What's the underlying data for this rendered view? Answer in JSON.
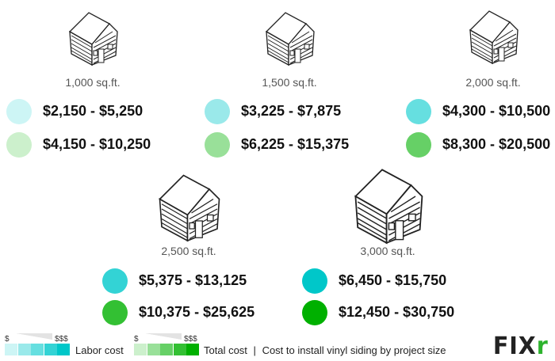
{
  "projects": [
    {
      "size": "1,000 sq.ft.",
      "labor": "$2,150 - $5,250",
      "total": "$4,150 - $10,250",
      "labor_color": "#cdf5f5",
      "total_color": "#ccf0cc"
    },
    {
      "size": "1,500 sq.ft.",
      "labor": "$3,225 - $7,875",
      "total": "$6,225 - $15,375",
      "labor_color": "#9ae9ea",
      "total_color": "#99e099"
    },
    {
      "size": "2,000 sq.ft.",
      "labor": "$4,300 - $10,500",
      "total": "$8,300 - $20,500",
      "labor_color": "#66dfe0",
      "total_color": "#66d066"
    },
    {
      "size": "2,500 sq.ft.",
      "labor": "$5,375 - $13,125",
      "total": "$10,375 - $25,625",
      "labor_color": "#33d3d5",
      "total_color": "#33c033"
    },
    {
      "size": "3,000 sq.ft.",
      "labor": "$6,450 - $15,750",
      "total": "$12,450 - $30,750",
      "labor_color": "#00c7c9",
      "total_color": "#00b000"
    }
  ],
  "legend": {
    "low": "$",
    "high": "$$$",
    "labor_label": "Labor cost",
    "total_label": "Total cost",
    "separator": "|",
    "caption": "Cost to install vinyl siding by project size",
    "labor_scale": [
      "#cdf5f5",
      "#9ae9ea",
      "#66dfe0",
      "#33d3d5",
      "#00c7c9"
    ],
    "total_scale": [
      "#ccf0cc",
      "#99e099",
      "#66d066",
      "#33c033",
      "#00b000"
    ]
  },
  "logo": {
    "text": "FIXR",
    "accent": "#2db32d"
  }
}
